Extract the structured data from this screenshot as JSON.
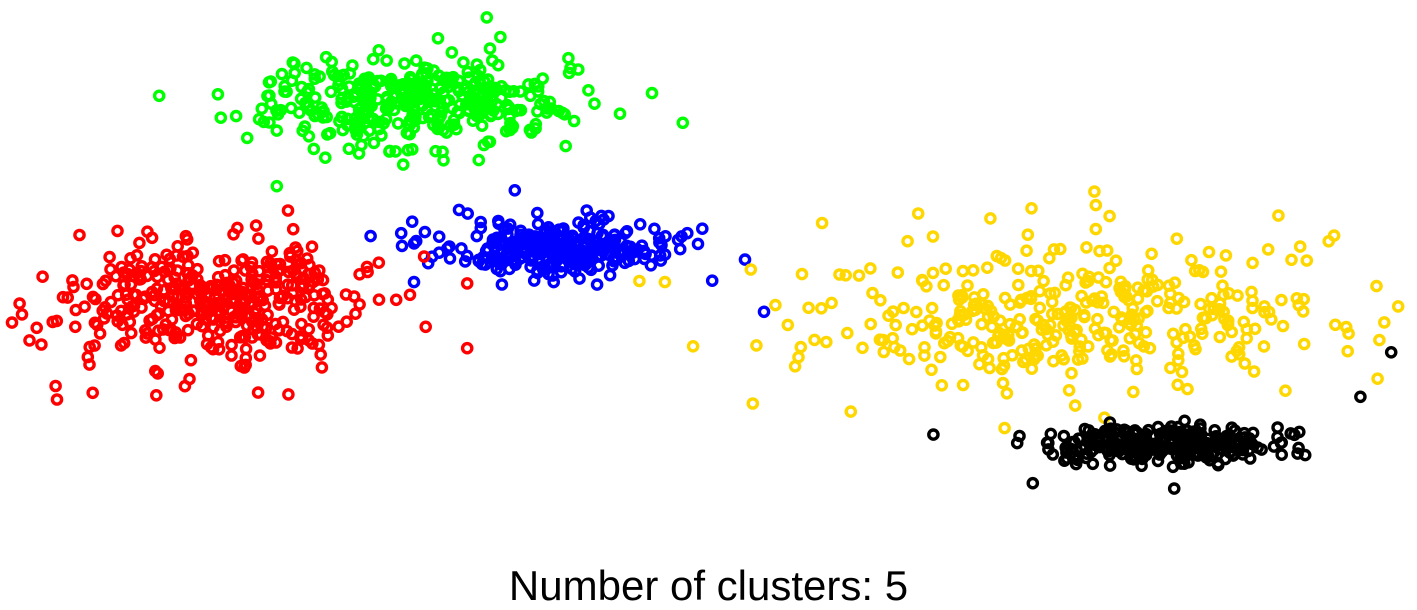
{
  "chart_data": {
    "type": "scatter",
    "title": "",
    "xlabel": "Number of clusters: 5",
    "ylabel": "",
    "axes_visible": false,
    "grid": false,
    "legend": "none",
    "xlim": [
      0,
      1000
    ],
    "ylim": [
      0,
      400
    ],
    "marker": "ring",
    "clusters": [
      {
        "color": "#00ff00",
        "center": [
          285,
          330
        ],
        "spread": [
          52,
          16
        ],
        "count": 380
      },
      {
        "color": "#0000ff",
        "center": [
          392,
          222
        ],
        "spread": [
          42,
          10
        ],
        "count": 300
      },
      {
        "color": "#ff0000",
        "center": [
          148,
          182
        ],
        "spread": [
          52,
          22
        ],
        "count": 420
      },
      {
        "color": "#ffd700",
        "center": [
          755,
          172
        ],
        "spread": [
          95,
          26
        ],
        "count": 380
      },
      {
        "color": "#000000",
        "center": [
          830,
          76
        ],
        "spread": [
          40,
          7
        ],
        "count": 300
      }
    ],
    "outliers": [
      {
        "color": "#00ff00",
        "points": [
          [
            108,
            335
          ],
          [
            482,
            315
          ],
          [
            192,
            268
          ],
          [
            342,
            393
          ],
          [
            460,
            337
          ]
        ]
      },
      {
        "color": "#0000ff",
        "points": [
          [
            362,
            265
          ],
          [
            540,
            175
          ],
          [
            503,
            198
          ],
          [
            259,
            231
          ],
          [
            290,
            197
          ]
        ]
      },
      {
        "color": "#ff0000",
        "points": [
          [
            34,
            120
          ],
          [
            200,
            250
          ],
          [
            328,
            148
          ],
          [
            10,
            173
          ],
          [
            328,
            196
          ],
          [
            35,
            110
          ]
        ]
      },
      {
        "color": "#ffd700",
        "points": [
          [
            532,
            107
          ],
          [
            776,
            264
          ],
          [
            993,
            179
          ],
          [
            602,
            101
          ],
          [
            777,
            254
          ]
        ]
      },
      {
        "color": "#000000",
        "points": [
          [
            732,
            48
          ],
          [
            833,
            44
          ],
          [
            988,
            145
          ],
          [
            966,
            112
          ],
          [
            661,
            84
          ]
        ]
      }
    ],
    "seed": 20240611
  },
  "caption": {
    "text": "Number of clusters: 5"
  }
}
